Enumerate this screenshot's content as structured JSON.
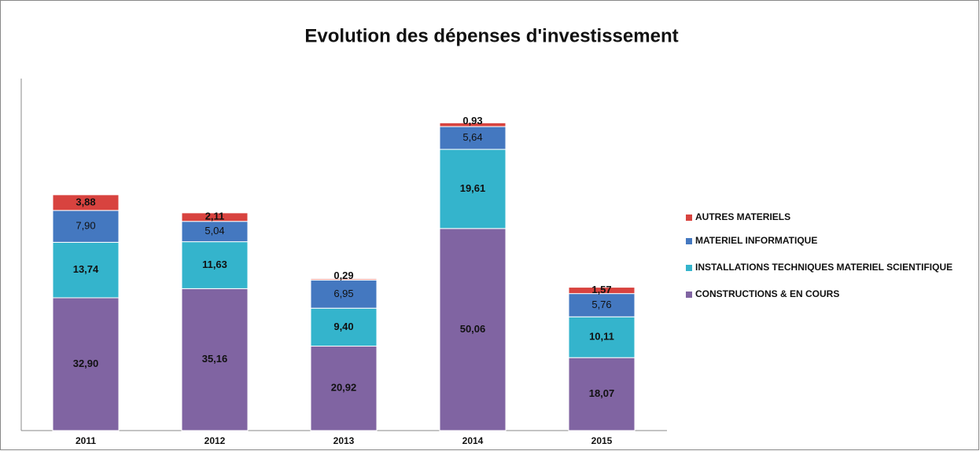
{
  "chart_data": {
    "type": "stacked_bar",
    "title": "Evolution des dépenses d'investissement",
    "categories": [
      "2011",
      "2012",
      "2013",
      "2014",
      "2015"
    ],
    "series": [
      {
        "name": "CONSTRUCTIONS & EN COURS",
        "color": "#8064a2",
        "values": [
          32.9,
          35.16,
          20.92,
          50.06,
          18.07
        ],
        "value_labels": [
          "32,90",
          "35,16",
          "20,92",
          "50,06",
          "18,07"
        ]
      },
      {
        "name": "INSTALLATIONS TECHNIQUES MATERIEL SCIENTIFIQUE",
        "color": "#34b4cc",
        "values": [
          13.74,
          11.63,
          9.4,
          19.61,
          10.11
        ],
        "value_labels": [
          "13,74",
          "11,63",
          "9,40",
          "19,61",
          "10,11"
        ]
      },
      {
        "name": "MATERIEL INFORMATIQUE",
        "color": "#4478c0",
        "values": [
          7.9,
          5.04,
          6.95,
          5.64,
          5.76
        ],
        "value_labels": [
          "7,90",
          "5,04",
          "6,95",
          "5,64",
          "5,76"
        ]
      },
      {
        "name": "AUTRES MATERIELS",
        "color": "#d8433f",
        "values": [
          3.88,
          2.11,
          0.29,
          0.93,
          1.57
        ],
        "value_labels": [
          "3,88",
          "2,11",
          "0,29",
          "0,93",
          "1,57"
        ]
      }
    ],
    "ylim": [
      0,
      80
    ],
    "legend": "right"
  }
}
